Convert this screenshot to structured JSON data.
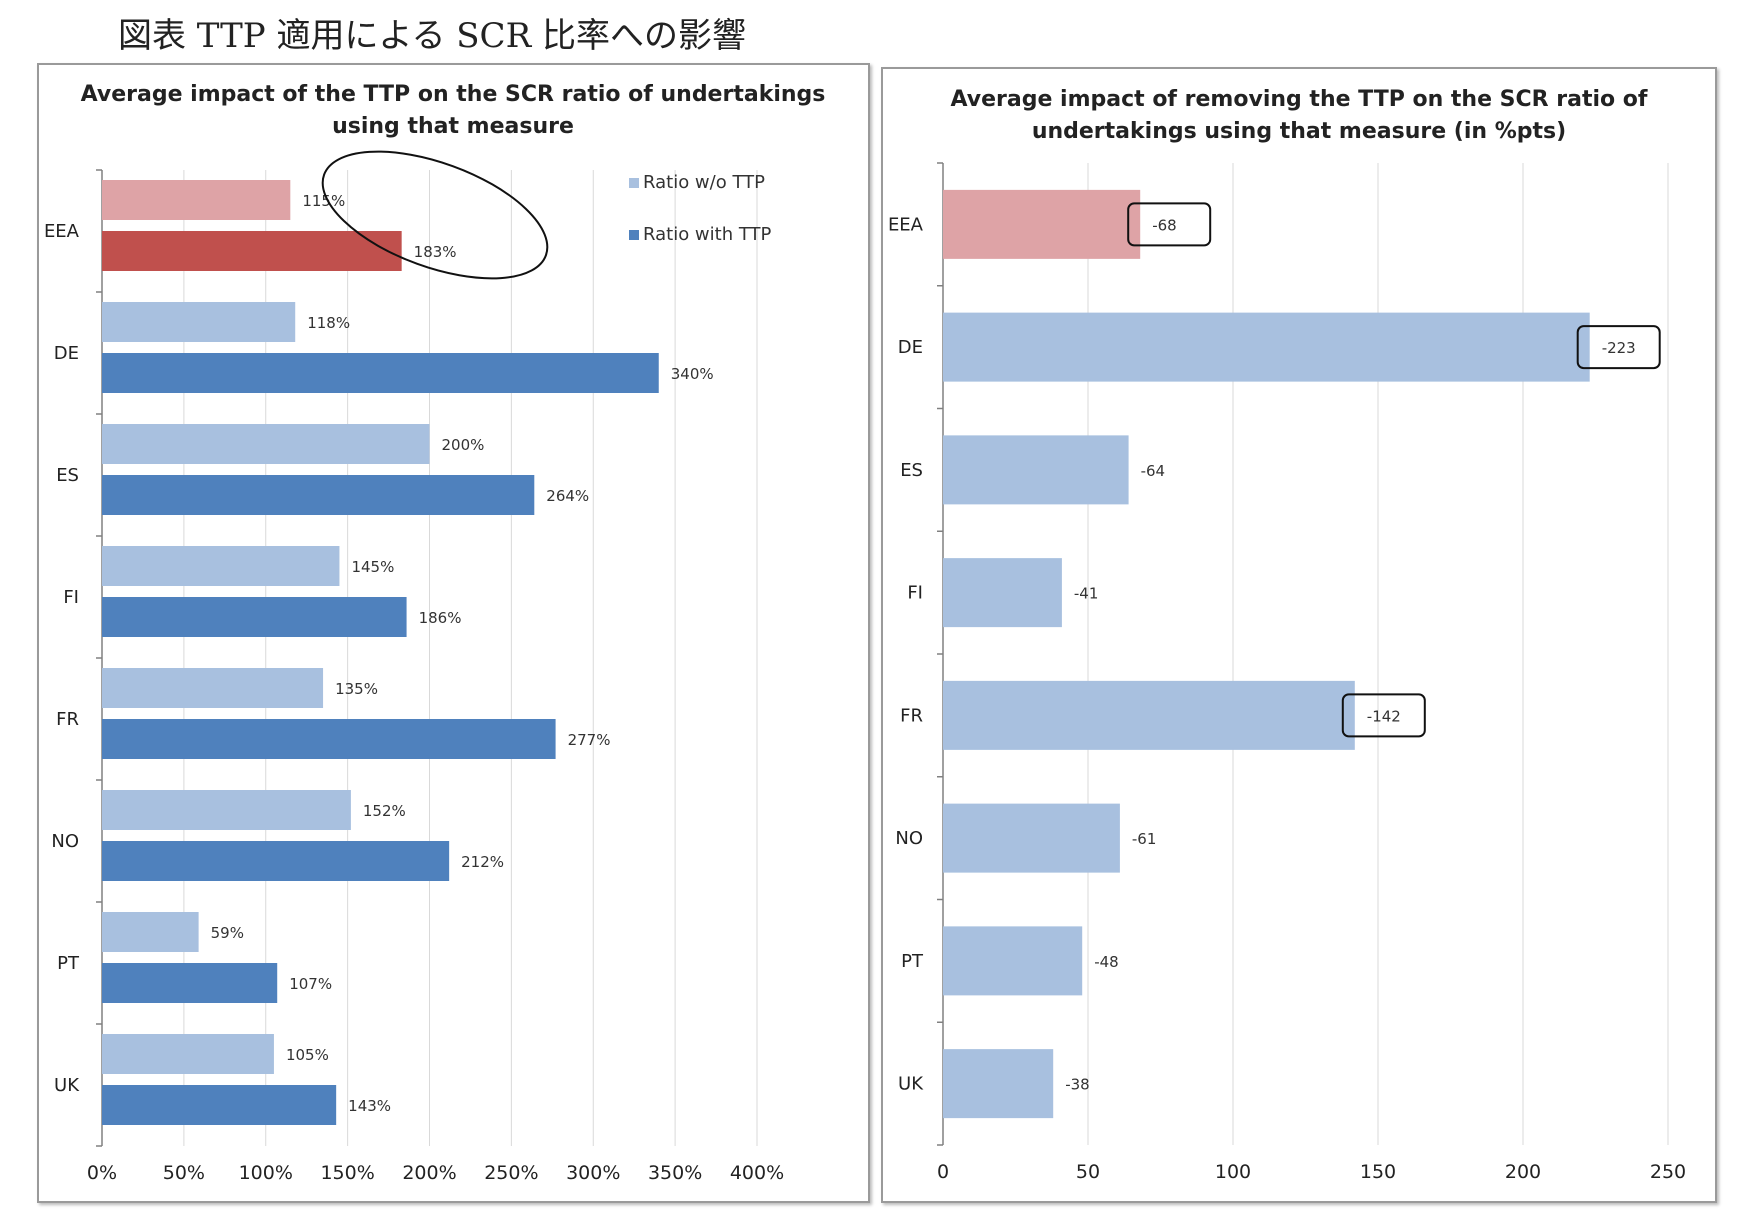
{
  "page_title": "図表 TTP 適用による SCR 比率への影響",
  "colors": {
    "eea_without": "#dea3a6",
    "eea_with": "#c0504d",
    "without": "#a8c0df",
    "with": "#4f81bd",
    "gridline": "#d9d9d9",
    "axis": "#808080"
  },
  "chart_data": [
    {
      "type": "bar",
      "orientation": "horizontal",
      "title": "Average impact of the TTP on the SCR ratio of undertakings using that measure",
      "title_lines": [
        "Average impact of the TTP on the SCR ratio of undertakings",
        "using that measure"
      ],
      "categories": [
        "EEA",
        "DE",
        "ES",
        "FI",
        "FR",
        "NO",
        "PT",
        "UK"
      ],
      "series": [
        {
          "name": "Ratio w/o TTP",
          "values": [
            115,
            118,
            200,
            145,
            135,
            152,
            59,
            105
          ],
          "labels": [
            "115%",
            "118%",
            "200%",
            "145%",
            "135%",
            "152%",
            "59%",
            "105%"
          ]
        },
        {
          "name": "Ratio with TTP",
          "values": [
            183,
            340,
            264,
            186,
            277,
            212,
            107,
            143
          ],
          "labels": [
            "183%",
            "340%",
            "264%",
            "186%",
            "277%",
            "212%",
            "107%",
            "143%"
          ]
        }
      ],
      "xlim": [
        0,
        400
      ],
      "x_ticks": [
        "0%",
        "50%",
        "100%",
        "150%",
        "200%",
        "250%",
        "300%",
        "350%",
        "400%"
      ],
      "legend_position": "top-right",
      "grid": true,
      "annotations": [
        {
          "type": "ellipse",
          "target": "EEA"
        }
      ]
    },
    {
      "type": "bar",
      "orientation": "horizontal",
      "title": "Average impact of removing the TTP on the SCR ratio of undertakings using that measure (in %pts)",
      "title_lines": [
        "Average impact of removing the TTP on the SCR ratio of",
        "undertakings using that measure (in %pts)"
      ],
      "categories": [
        "EEA",
        "DE",
        "ES",
        "FI",
        "FR",
        "NO",
        "PT",
        "UK"
      ],
      "series": [
        {
          "values": [
            68,
            223,
            64,
            41,
            142,
            61,
            48,
            38
          ],
          "labels": [
            "-68",
            "-223",
            "-64",
            "-41",
            "-142",
            "-61",
            "-48",
            "-38"
          ]
        }
      ],
      "xlim": [
        0,
        250
      ],
      "x_ticks": [
        "0",
        "50",
        "100",
        "150",
        "200",
        "250"
      ],
      "grid": true,
      "annotations": [
        {
          "type": "box",
          "target": "EEA"
        },
        {
          "type": "box",
          "target": "DE"
        },
        {
          "type": "box",
          "target": "FR"
        }
      ]
    }
  ]
}
